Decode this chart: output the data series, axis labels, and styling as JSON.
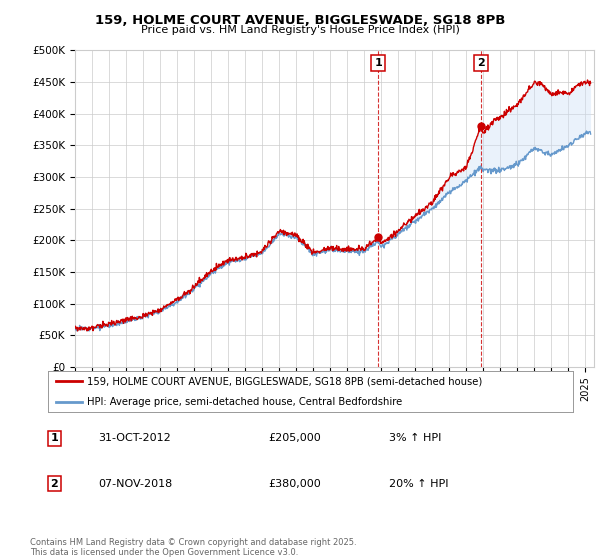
{
  "title": "159, HOLME COURT AVENUE, BIGGLESWADE, SG18 8PB",
  "subtitle": "Price paid vs. HM Land Registry's House Price Index (HPI)",
  "ylabel_ticks": [
    "£0",
    "£50K",
    "£100K",
    "£150K",
    "£200K",
    "£250K",
    "£300K",
    "£350K",
    "£400K",
    "£450K",
    "£500K"
  ],
  "ylim": [
    0,
    500000
  ],
  "xlim_start": 1995.0,
  "xlim_end": 2025.5,
  "sale1_date": 2012.83,
  "sale1_price": 205000,
  "sale1_label": "1",
  "sale2_date": 2018.85,
  "sale2_price": 380000,
  "sale2_label": "2",
  "line_color_red": "#cc0000",
  "line_color_blue": "#6699cc",
  "shade_color": "#cce0f5",
  "grid_color": "#cccccc",
  "background_color": "#ffffff",
  "legend_line1": "159, HOLME COURT AVENUE, BIGGLESWADE, SG18 8PB (semi-detached house)",
  "legend_line2": "HPI: Average price, semi-detached house, Central Bedfordshire",
  "footnote": "Contains HM Land Registry data © Crown copyright and database right 2025.\nThis data is licensed under the Open Government Licence v3.0.",
  "xtick_years": [
    1995,
    1996,
    1997,
    1998,
    1999,
    2000,
    2001,
    2002,
    2003,
    2004,
    2005,
    2006,
    2007,
    2008,
    2009,
    2010,
    2011,
    2012,
    2013,
    2014,
    2015,
    2016,
    2017,
    2018,
    2019,
    2020,
    2021,
    2022,
    2023,
    2024,
    2025
  ],
  "hpi_anchors": [
    [
      1995,
      60000
    ],
    [
      1996,
      61000
    ],
    [
      1997,
      65000
    ],
    [
      1998,
      72000
    ],
    [
      1999,
      79000
    ],
    [
      2000,
      89000
    ],
    [
      2001,
      103000
    ],
    [
      2002,
      123000
    ],
    [
      2003,
      148000
    ],
    [
      2004,
      165000
    ],
    [
      2005,
      170000
    ],
    [
      2006,
      180000
    ],
    [
      2007,
      210000
    ],
    [
      2008,
      205000
    ],
    [
      2009,
      178000
    ],
    [
      2010,
      185000
    ],
    [
      2011,
      182000
    ],
    [
      2012,
      183000
    ],
    [
      2012.83,
      198000
    ],
    [
      2013,
      190000
    ],
    [
      2014,
      210000
    ],
    [
      2015,
      230000
    ],
    [
      2016,
      250000
    ],
    [
      2017,
      275000
    ],
    [
      2018,
      295000
    ],
    [
      2018.85,
      315000
    ],
    [
      2019,
      310000
    ],
    [
      2020,
      310000
    ],
    [
      2021,
      320000
    ],
    [
      2022,
      345000
    ],
    [
      2023,
      335000
    ],
    [
      2024,
      350000
    ],
    [
      2025,
      370000
    ]
  ],
  "prop_anchors": [
    [
      1995,
      60000
    ],
    [
      1996,
      62000
    ],
    [
      1997,
      67000
    ],
    [
      1998,
      74000
    ],
    [
      1999,
      80000
    ],
    [
      2000,
      91000
    ],
    [
      2001,
      106000
    ],
    [
      2002,
      127000
    ],
    [
      2003,
      152000
    ],
    [
      2004,
      168000
    ],
    [
      2005,
      173000
    ],
    [
      2006,
      183000
    ],
    [
      2007,
      215000
    ],
    [
      2008,
      208000
    ],
    [
      2009,
      180000
    ],
    [
      2010,
      188000
    ],
    [
      2011,
      185000
    ],
    [
      2012,
      186000
    ],
    [
      2012.83,
      205000
    ],
    [
      2013,
      195000
    ],
    [
      2014,
      215000
    ],
    [
      2015,
      240000
    ],
    [
      2016,
      260000
    ],
    [
      2017,
      300000
    ],
    [
      2018,
      315000
    ],
    [
      2018.85,
      380000
    ],
    [
      2019,
      370000
    ],
    [
      2019.5,
      385000
    ],
    [
      2020,
      395000
    ],
    [
      2021,
      415000
    ],
    [
      2022,
      450000
    ],
    [
      2022.5,
      445000
    ],
    [
      2023,
      430000
    ],
    [
      2023.5,
      435000
    ],
    [
      2024,
      430000
    ],
    [
      2024.5,
      445000
    ],
    [
      2025,
      450000
    ]
  ]
}
